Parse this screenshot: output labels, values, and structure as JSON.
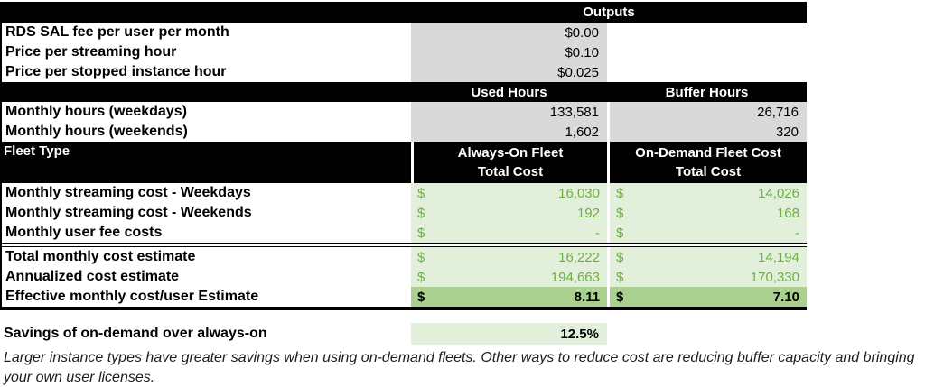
{
  "sheet": {
    "outputs_header": "Outputs",
    "currency_symbol": "$",
    "param_rows": [
      {
        "label": "RDS SAL fee per user per month",
        "value": "$0.00"
      },
      {
        "label": "Price per streaming hour",
        "value": "$0.10"
      },
      {
        "label": "Price per stopped instance hour",
        "value": "$0.025"
      }
    ],
    "hours_header": {
      "used": "Used Hours",
      "buffer": "Buffer Hours"
    },
    "hours_rows": [
      {
        "label": "Monthly hours (weekdays)",
        "used": "133,581",
        "buffer": "26,716"
      },
      {
        "label": "Monthly hours (weekends)",
        "used": "1,602",
        "buffer": "320"
      }
    ],
    "fleet_header": {
      "label": "Fleet Type",
      "always_on_line1": "Always-On Fleet",
      "always_on_line2": "Total Cost",
      "on_demand_line1": "On-Demand Fleet Cost",
      "on_demand_line2": "Total Cost"
    },
    "cost_rows": [
      {
        "label": "Monthly streaming cost - Weekdays",
        "always_on": "16,030",
        "on_demand": "14,026"
      },
      {
        "label": "Monthly streaming cost - Weekends",
        "always_on": "192",
        "on_demand": "168"
      },
      {
        "label": "Monthly user fee costs",
        "always_on": "-",
        "on_demand": "-"
      }
    ],
    "total_rows": [
      {
        "label": "Total monthly cost estimate",
        "always_on": "16,222",
        "on_demand": "14,194"
      },
      {
        "label": "Annualized cost estimate",
        "always_on": "194,663",
        "on_demand": "170,330"
      }
    ],
    "effective_row": {
      "label": "Effective monthly cost/user Estimate",
      "always_on": "8.11",
      "on_demand": "7.10"
    },
    "savings": {
      "label": "Savings of on-demand over always-on",
      "value": "12.5%"
    },
    "note": "Larger instance types have greater savings when using on-demand fleets. Other ways to reduce cost are reducing buffer capacity and bringing your own user licenses."
  },
  "colors": {
    "header_bg": "#000000",
    "header_text": "#ffffff",
    "input_cell_bg": "#d9d9d9",
    "result_cell_bg": "#e2efda",
    "result_text_green": "#70ad47",
    "highlight_row_bg": "#a9d08e"
  }
}
